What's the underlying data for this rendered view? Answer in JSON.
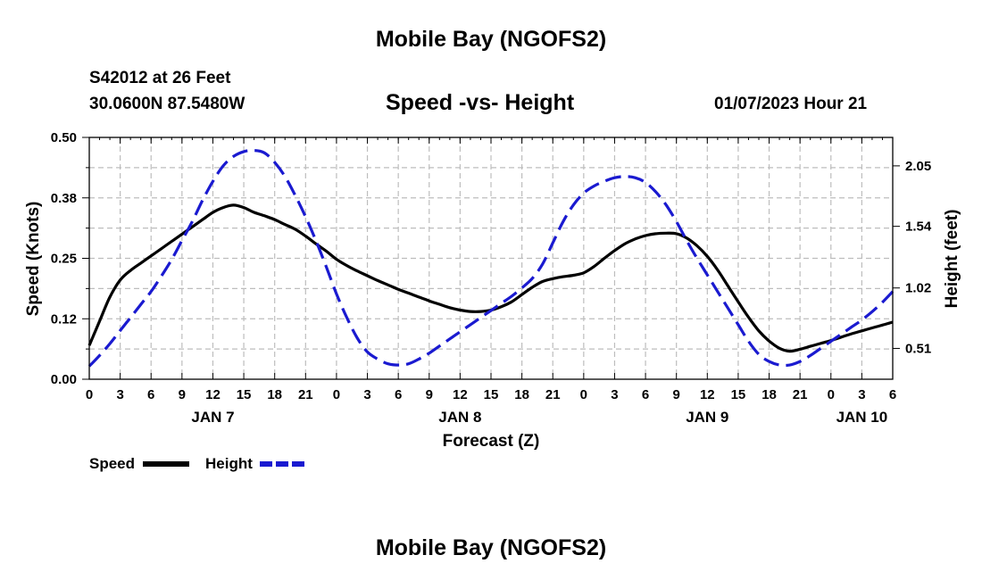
{
  "header": {
    "title": "Mobile Bay (NGOFS2)",
    "station": "S42012 at 26 Feet",
    "coords": "30.0600N  87.5480W",
    "subtitle": "Speed -vs- Height",
    "datetime": "01/07/2023 Hour 21"
  },
  "footer": {
    "title": "Mobile Bay (NGOFS2)"
  },
  "chart_data": {
    "type": "line",
    "title": "Speed -vs- Height",
    "xlabel": "Forecast (Z)",
    "ylabel": "Speed (Knots)",
    "y2label": "Height (feet)",
    "x_unit": "hours from Jan 7 00Z",
    "xlim": [
      0,
      78
    ],
    "ylim": [
      0,
      0.5
    ],
    "y2lim": [
      0.25,
      2.29
    ],
    "x_ticks": [
      0,
      3,
      6,
      9,
      12,
      15,
      18,
      21,
      24,
      27,
      30,
      33,
      36,
      39,
      42,
      45,
      48,
      51,
      54,
      57,
      60,
      63,
      66,
      69,
      72,
      75,
      78
    ],
    "x_tick_labels": [
      "0",
      "3",
      "6",
      "9",
      "12",
      "15",
      "18",
      "21",
      "0",
      "3",
      "6",
      "9",
      "12",
      "15",
      "18",
      "21",
      "0",
      "3",
      "6",
      "9",
      "12",
      "15",
      "18",
      "21",
      "0",
      "3",
      "6"
    ],
    "day_labels": [
      {
        "x": 12,
        "label": "JAN 7"
      },
      {
        "x": 36,
        "label": "JAN 8"
      },
      {
        "x": 60,
        "label": "JAN 9"
      },
      {
        "x": 75,
        "label": "JAN 10"
      }
    ],
    "y_ticks": [
      0,
      0.125,
      0.25,
      0.375,
      0.5
    ],
    "y_tick_labels": [
      "0.00",
      "0.12",
      "0.25",
      "0.38",
      "0.50"
    ],
    "y2_ticks": [
      0.51,
      1.02,
      1.54,
      2.05
    ],
    "y2_tick_labels": [
      "0.51",
      "1.02",
      "1.54",
      "2.05"
    ],
    "grid": true,
    "legend": {
      "position": "bottom-left",
      "entries": [
        "Speed",
        "Height"
      ]
    },
    "series": [
      {
        "name": "Speed",
        "axis": "left",
        "color": "#000000",
        "dash": "solid",
        "x": [
          0,
          1,
          2,
          3,
          4,
          5,
          6,
          7,
          8,
          9,
          10,
          11,
          12,
          13,
          14,
          15,
          16,
          17,
          18,
          19,
          20,
          21,
          22,
          23,
          24,
          25,
          26,
          27,
          28,
          29,
          30,
          31,
          32,
          33,
          34,
          35,
          36,
          37,
          38,
          39,
          40,
          41,
          42,
          43,
          44,
          45,
          46,
          47,
          48,
          49,
          50,
          51,
          52,
          53,
          54,
          55,
          56,
          57,
          58,
          59,
          60,
          61,
          62,
          63,
          64,
          65,
          66,
          67,
          68,
          69,
          70,
          71,
          72,
          73,
          74,
          75,
          76,
          77,
          78
        ],
        "values": [
          0.07,
          0.12,
          0.17,
          0.205,
          0.225,
          0.24,
          0.255,
          0.27,
          0.285,
          0.3,
          0.315,
          0.33,
          0.345,
          0.355,
          0.36,
          0.355,
          0.345,
          0.338,
          0.33,
          0.32,
          0.31,
          0.296,
          0.28,
          0.265,
          0.248,
          0.235,
          0.224,
          0.214,
          0.204,
          0.195,
          0.186,
          0.178,
          0.17,
          0.162,
          0.155,
          0.148,
          0.143,
          0.14,
          0.14,
          0.143,
          0.15,
          0.16,
          0.175,
          0.19,
          0.202,
          0.208,
          0.212,
          0.215,
          0.22,
          0.233,
          0.25,
          0.266,
          0.28,
          0.29,
          0.297,
          0.301,
          0.302,
          0.301,
          0.292,
          0.276,
          0.254,
          0.226,
          0.193,
          0.16,
          0.128,
          0.1,
          0.079,
          0.064,
          0.058,
          0.062,
          0.068,
          0.074,
          0.08,
          0.087,
          0.094,
          0.1,
          0.106,
          0.112,
          0.118
        ]
      },
      {
        "name": "Height",
        "axis": "right",
        "color": "#1a1ad0",
        "dash": "dashed",
        "x": [
          0,
          1,
          2,
          3,
          4,
          5,
          6,
          7,
          8,
          9,
          10,
          11,
          12,
          13,
          14,
          15,
          16,
          17,
          18,
          19,
          20,
          21,
          22,
          23,
          24,
          25,
          26,
          27,
          28,
          29,
          30,
          31,
          32,
          33,
          34,
          35,
          36,
          37,
          38,
          39,
          40,
          41,
          42,
          43,
          44,
          45,
          46,
          47,
          48,
          49,
          50,
          51,
          52,
          53,
          54,
          55,
          56,
          57,
          58,
          59,
          60,
          61,
          62,
          63,
          64,
          65,
          66,
          67,
          68,
          69,
          70,
          71,
          72,
          73,
          74,
          75,
          76,
          77,
          78
        ],
        "values": [
          0.36,
          0.45,
          0.55,
          0.66,
          0.77,
          0.88,
          0.99,
          1.12,
          1.26,
          1.42,
          1.58,
          1.76,
          1.92,
          2.05,
          2.13,
          2.17,
          2.18,
          2.16,
          2.08,
          1.96,
          1.8,
          1.62,
          1.42,
          1.2,
          0.97,
          0.77,
          0.6,
          0.48,
          0.42,
          0.38,
          0.37,
          0.38,
          0.42,
          0.47,
          0.53,
          0.59,
          0.65,
          0.71,
          0.77,
          0.83,
          0.89,
          0.95,
          1.02,
          1.1,
          1.22,
          1.4,
          1.58,
          1.72,
          1.82,
          1.88,
          1.92,
          1.95,
          1.96,
          1.95,
          1.91,
          1.83,
          1.72,
          1.58,
          1.42,
          1.27,
          1.13,
          0.99,
          0.85,
          0.71,
          0.57,
          0.46,
          0.4,
          0.37,
          0.37,
          0.4,
          0.45,
          0.51,
          0.57,
          0.63,
          0.69,
          0.75,
          0.82,
          0.9,
          0.99
        ]
      }
    ]
  }
}
